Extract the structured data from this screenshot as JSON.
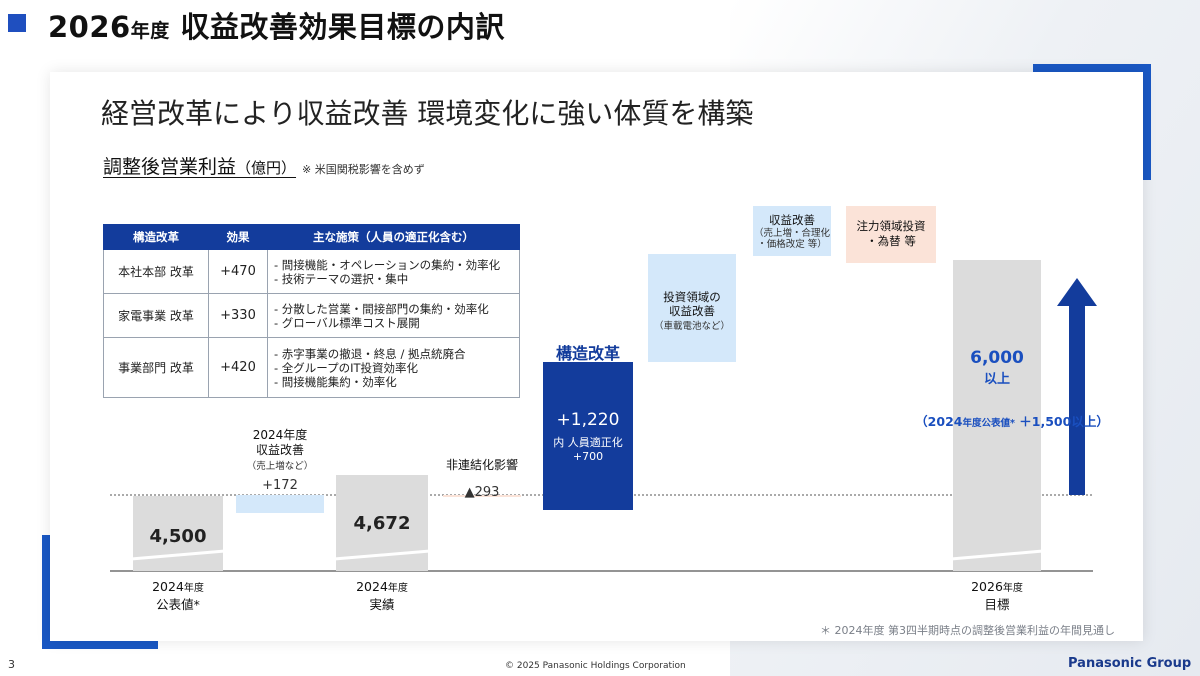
{
  "page_title": "2026",
  "page_title_small": "年度",
  "page_title_rest": " 収益改善効果目標の内訳",
  "subtitle": "経営改革により収益改善 環境変化に強い体質を構築",
  "ylabel_main": "調整後営業利益",
  "ylabel_unit": "（億円）",
  "ylabel_note": "※ 米国関税影響を含めず",
  "table": {
    "headers": [
      "構造改革",
      "効果",
      "主な施策（人員の適正化含む）"
    ],
    "rows": [
      {
        "name": "本社本部 改革",
        "effect": "+470",
        "measures": [
          "- 間接機能・オペレーションの集約・効率化",
          "- 技術テーマの選択・集中"
        ]
      },
      {
        "name": "家電事業 改革",
        "effect": "+330",
        "measures": [
          "- 分散した営業・間接部門の集約・効率化",
          "- グローバル標準コスト展開"
        ]
      },
      {
        "name": "事業部門 改革",
        "effect": "+420",
        "measures": [
          "- 赤字事業の撤退・終息 / 拠点統廃合",
          "- 全グループのIT投資効率化",
          "- 間接機能集約・効率化"
        ]
      }
    ]
  },
  "chart_data": {
    "type": "bar",
    "subtype": "waterfall",
    "unit": "億円",
    "steps": [
      {
        "kind": "total",
        "value": 4500,
        "value_label": "4,500",
        "label_lines": [
          "2024年度",
          "公表値*"
        ],
        "color": "#dcdcdc"
      },
      {
        "kind": "delta",
        "value": 172,
        "value_label": "+172",
        "header_lines": [
          "2024年度",
          "収益改善"
        ],
        "sub_label": "（売上増など）",
        "color": "#d4e8fa"
      },
      {
        "kind": "total",
        "value": 4672,
        "value_label": "4,672",
        "label_lines": [
          "2024年度",
          "実績"
        ],
        "color": "#dcdcdc"
      },
      {
        "kind": "delta",
        "value": -293,
        "value_label": "▲293",
        "header_lines": [
          "非連結化影響"
        ],
        "color": "#fbe3d8"
      },
      {
        "kind": "delta",
        "value": 1220,
        "value_label": "+1,220",
        "header_lines": [
          "構造改革"
        ],
        "sub_lines": [
          "内 人員適正化",
          "+700"
        ],
        "color": "#133c9c"
      },
      {
        "kind": "unquantified",
        "label_lines": [
          "投資領域の",
          "収益改善"
        ],
        "sub_label": "（車載電池など）",
        "color": "#d4e8fa"
      },
      {
        "kind": "unquantified",
        "label_lines": [
          "収益改善"
        ],
        "sub_lines": [
          "（売上増・合理化",
          "・価格改定 等）"
        ],
        "color": "#d4e8fa"
      },
      {
        "kind": "unquantified",
        "label_lines": [
          "注力領域投資",
          "・為替 等"
        ],
        "color": "#fbe3d8"
      },
      {
        "kind": "target",
        "value": 6000,
        "value_label": "6,000",
        "value_sub": "以上",
        "label_lines": [
          "2026年度",
          "目標"
        ],
        "color": "#dcdcdc"
      }
    ],
    "annotation": {
      "prefix": "（2024",
      "small": "年度公表値*",
      "suffix": " ＋1,500以上）",
      "color": "#1a4fbf"
    },
    "accent_color": "#133c9c"
  },
  "footer_note": "＊ 2024年度 第3四半期時点の調整後営業利益の年間見通し",
  "page_number": "3",
  "copyright": "© 2025 Panasonic Holdings Corporation",
  "brand": "Panasonic Group"
}
